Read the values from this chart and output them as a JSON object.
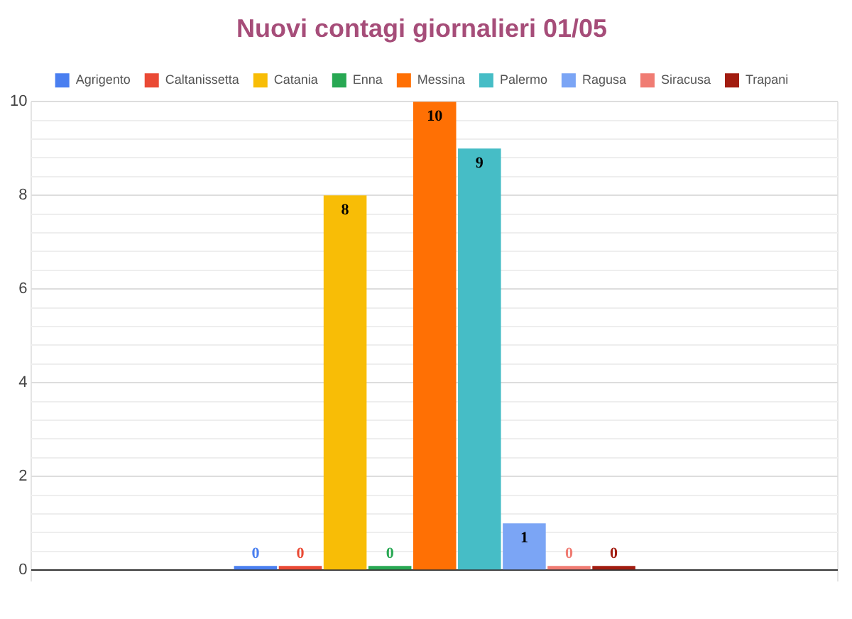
{
  "chart_data": {
    "type": "bar",
    "title": "Nuovi contagi giornalieri 01/05",
    "categories": [
      null
    ],
    "series": [
      {
        "name": "Agrigento",
        "color": "#4a7ff0",
        "values": [
          0
        ]
      },
      {
        "name": "Caltanissetta",
        "color": "#ea4a35",
        "values": [
          0
        ]
      },
      {
        "name": "Catania",
        "color": "#f8bd06",
        "values": [
          8
        ]
      },
      {
        "name": "Enna",
        "color": "#28a853",
        "values": [
          0
        ]
      },
      {
        "name": "Messina",
        "color": "#ff7004",
        "values": [
          10
        ]
      },
      {
        "name": "Palermo",
        "color": "#46bdc6",
        "values": [
          9
        ]
      },
      {
        "name": "Ragusa",
        "color": "#7ba5f5",
        "values": [
          1
        ]
      },
      {
        "name": "Siracusa",
        "color": "#f07c73",
        "values": [
          0
        ]
      },
      {
        "name": "Trapani",
        "color": "#a21c10",
        "values": [
          0
        ]
      }
    ],
    "ylim": [
      0,
      10
    ],
    "yticks": [
      0,
      {
        "value": 0.4,
        "label": null
      },
      {
        "value": 0.8,
        "label": null
      },
      {
        "value": 1.2,
        "label": null
      },
      {
        "value": 1.6,
        "label": null
      },
      2,
      {
        "value": 2.4,
        "label": null
      },
      {
        "value": 2.8,
        "label": null
      },
      {
        "value": 3.2,
        "label": null
      },
      {
        "value": 3.6,
        "label": null
      },
      4,
      {
        "value": 4.4,
        "label": null
      },
      {
        "value": 4.8,
        "label": null
      },
      {
        "value": 5.2,
        "label": null
      },
      {
        "value": 5.6,
        "label": null
      },
      6,
      {
        "value": 6.4,
        "label": null
      },
      {
        "value": 6.8,
        "label": null
      },
      {
        "value": 7.2,
        "label": null
      },
      {
        "value": 7.6,
        "label": null
      },
      8,
      {
        "value": 8.4,
        "label": null
      },
      {
        "value": 8.8,
        "label": null
      },
      {
        "value": 9.2,
        "label": null
      },
      {
        "value": 9.6,
        "label": null
      },
      10
    ],
    "grid": true,
    "legend": "top",
    "data_labels": true
  }
}
